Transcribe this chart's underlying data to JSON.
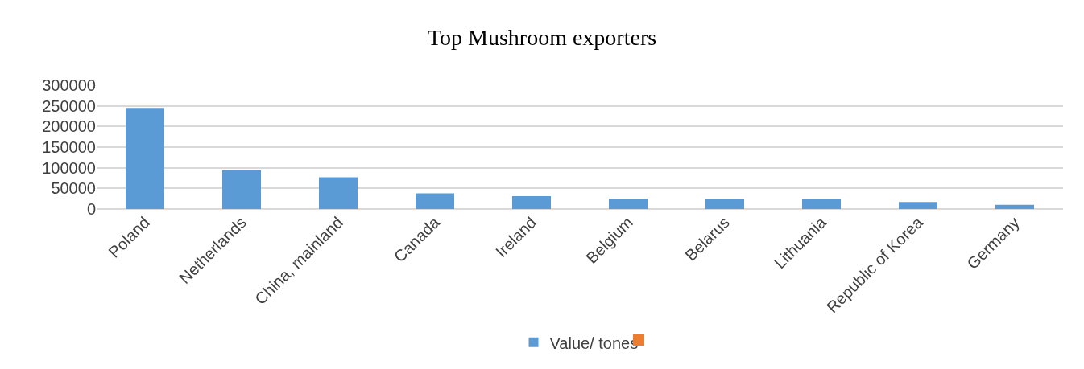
{
  "chart_data": {
    "type": "bar",
    "title": "Top Mushroom exporters",
    "categories": [
      "Poland",
      "Netherlands",
      "China, mainland",
      "Canada",
      "Ireland",
      "Belgium",
      "Belarus",
      "Lithuania",
      "Republic of Korea",
      "Germany"
    ],
    "series": [
      {
        "name": "Value/ tones",
        "color": "#5b9bd5",
        "values": [
          245000,
          94000,
          77000,
          38000,
          31000,
          25000,
          24000,
          24000,
          17000,
          10000
        ]
      }
    ],
    "ylim": [
      0,
      300000
    ],
    "yticks": [
      0,
      50000,
      100000,
      150000,
      200000,
      250000,
      300000
    ],
    "grid": "y",
    "legend": "bottom"
  }
}
